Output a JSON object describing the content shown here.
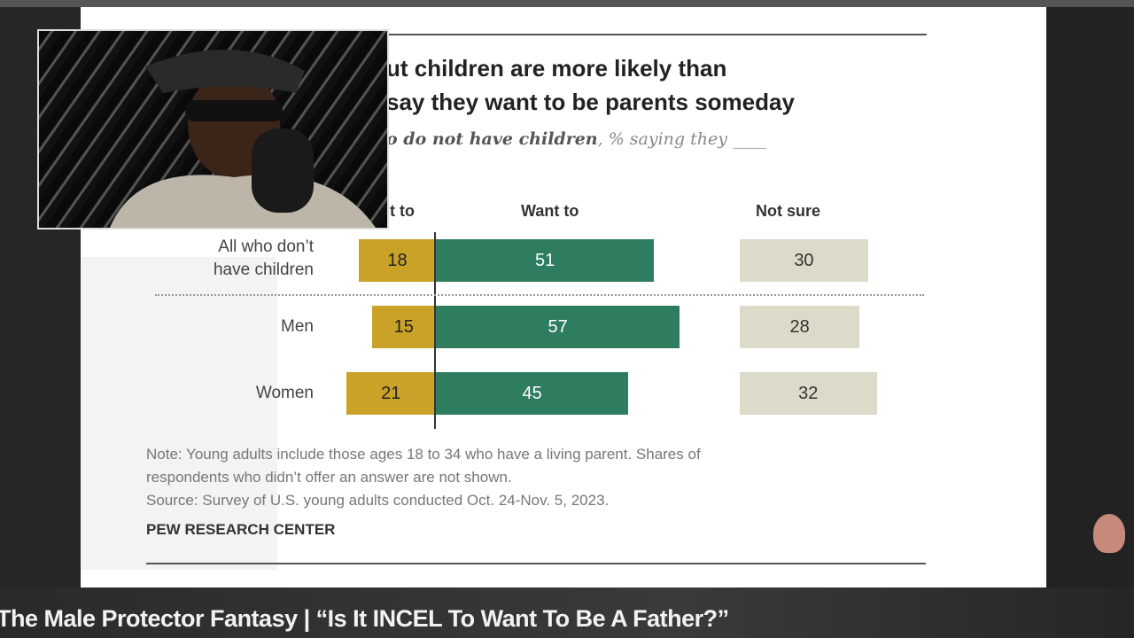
{
  "video_caption": "The Male Protector Fantasy | “Is It INCEL To Want To Be A Father?”",
  "slide": {
    "title_line1": "ut children are more likely than",
    "title_line2": "say they want to be parents someday",
    "subtitle_bold": "o do not have children",
    "subtitle_rest": ", % saying they ____",
    "note_line1": "Note: Young adults include those ages 18 to 34 who have a living parent. Shares of",
    "note_line2": "respondents who didn’t offer an answer are not shown.",
    "source": "Source: Survey of U.S. young adults conducted Oct. 24-Nov. 5, 2023.",
    "brand": "PEW RESEARCH CENTER"
  },
  "chart_data": {
    "type": "bar",
    "orientation": "horizontal-diverging",
    "column_headers": [
      "t to",
      "Want to",
      "Not sure"
    ],
    "categories": [
      "All who don’t have children",
      "Men",
      "Women"
    ],
    "series": [
      {
        "name": "t to",
        "values": [
          18,
          15,
          21
        ],
        "color": "#c9a227"
      },
      {
        "name": "Want to",
        "values": [
          51,
          57,
          45
        ],
        "color": "#2e7d5e"
      },
      {
        "name": "Not sure",
        "values": [
          30,
          28,
          32
        ],
        "color": "#dcdac8"
      }
    ]
  },
  "webcam": {
    "icon": "streamer-webcam-overlay"
  }
}
